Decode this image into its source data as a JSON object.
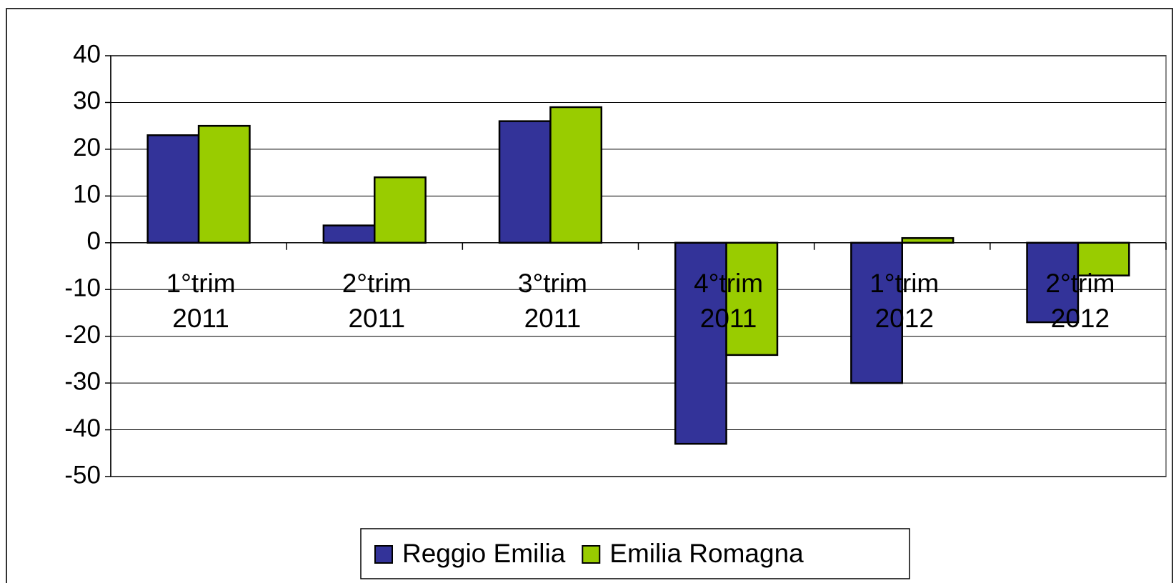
{
  "chart_data": {
    "type": "bar",
    "categories": [
      "1°trim\n2011",
      "2°trim\n2011",
      "3°trim\n2011",
      "4°trim\n2011",
      "1°trim\n2012",
      "2°trim\n2012"
    ],
    "series": [
      {
        "name": "Reggio Emilia",
        "color": "#333399",
        "values": [
          23,
          3.7,
          26,
          -43,
          -30,
          -17
        ]
      },
      {
        "name": "Emilia Romagna",
        "color": "#99cc00",
        "values": [
          25,
          14,
          29,
          -24,
          1,
          -7
        ]
      }
    ],
    "ylim": [
      -50,
      40
    ],
    "yticks": [
      -50,
      -40,
      -30,
      -20,
      -10,
      0,
      10,
      20,
      30,
      40
    ],
    "grid": true,
    "legend": "bottom"
  }
}
